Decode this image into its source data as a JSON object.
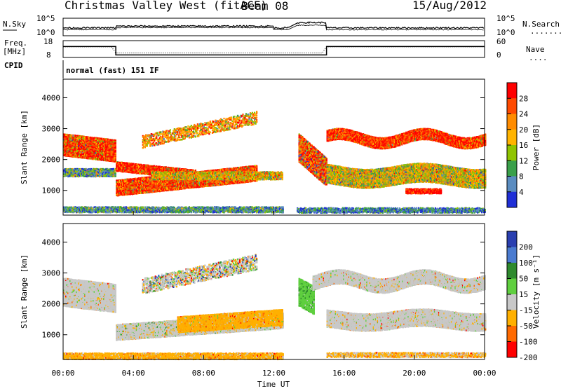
{
  "header": {
    "station": "Christmas Valley West (fitACF)",
    "beam": "Beam 08",
    "date": "15/Aug/2012"
  },
  "strip_labels": {
    "nsky": "N.Sky",
    "freq_line1": "Freq.",
    "freq_line2": "[MHz]",
    "cpid": "CPID",
    "nsearch": "N.Search",
    "nave": "Nave",
    "nsearch_dots": "........",
    "nave_dots": "...."
  },
  "strip_ticks": {
    "nsky_top": "10^5",
    "nsky_bottom": "10^0",
    "freq_top": "18",
    "freq_bottom": "8",
    "nave_top": "60",
    "nave_bottom": "0",
    "nsearch_top": "10^5",
    "nsearch_bottom": "10^0"
  },
  "cpid_text": "normal (fast) 151 IF",
  "panels": {
    "power": {
      "ylabel": "Slant Range [km]",
      "ticks": [
        "4000",
        "3000",
        "2000",
        "1000"
      ],
      "cbar_label": "Power [dB]",
      "cbar_ticks": [
        "28",
        "24",
        "20",
        "16",
        "12",
        "8",
        "4"
      ],
      "cbar_colors": [
        "#ff0000",
        "#ff4a00",
        "#ff8c00",
        "#ffb400",
        "#8fc400",
        "#3aa04a",
        "#5a8cc0",
        "#1f2fd6"
      ]
    },
    "velocity": {
      "ylabel": "Slant Range [km]",
      "ticks": [
        "4000",
        "3000",
        "2000",
        "1000"
      ],
      "cbar_label": "Velocity [m s⁻¹]",
      "cbar_ticks": [
        "200",
        "100",
        "50",
        "15",
        "-15",
        "-50",
        "-100",
        "-200"
      ],
      "cbar_colors": [
        "#2a3fb0",
        "#4a7bd0",
        "#2e8a2e",
        "#5fcf3f",
        "#c8c8c8",
        "#ffb000",
        "#ff6a00",
        "#ff0000"
      ]
    }
  },
  "x_axis": {
    "ticks": [
      "00:00",
      "04:00",
      "08:00",
      "12:00",
      "16:00",
      "20:00",
      "00:00"
    ],
    "label": "Time UT"
  },
  "chart_data": [
    {
      "type": "heatmap",
      "title": "Power",
      "ylabel": "Slant Range [km]",
      "xlabel": "Time UT",
      "x_range_hours": [
        0,
        24
      ],
      "ylim": [
        200,
        4600
      ],
      "colorbar": {
        "label": "Power [dB]",
        "ticks": [
          28,
          24,
          20,
          16,
          12,
          8,
          4
        ],
        "range": [
          0,
          30
        ]
      },
      "features": [
        {
          "region": "early band",
          "t": [
            0,
            3
          ],
          "range_km": [
            1600,
            2900
          ],
          "power_db": 26
        },
        {
          "region": "ground scatter",
          "t": [
            3,
            11
          ],
          "range_km": [
            500,
            1800
          ],
          "power_db": 28
        },
        {
          "region": "late band",
          "t": [
            15,
            24
          ],
          "range_km": [
            2300,
            3000
          ],
          "power_db": 22
        },
        {
          "region": "late low band",
          "t": [
            15,
            24
          ],
          "range_km": [
            900,
            1900
          ],
          "power_db": 14
        }
      ]
    },
    {
      "type": "heatmap",
      "title": "Velocity",
      "ylabel": "Slant Range [km]",
      "xlabel": "Time UT",
      "x_range_hours": [
        0,
        24
      ],
      "ylim": [
        200,
        4600
      ],
      "colorbar": {
        "label": "Velocity [m s-1]",
        "ticks": [
          200,
          100,
          50,
          15,
          -15,
          -50,
          -100,
          -200
        ]
      },
      "features": [
        {
          "region": "early band",
          "t": [
            0,
            3
          ],
          "range_km": [
            1600,
            2900
          ],
          "velocity": 0
        },
        {
          "region": "negative band",
          "t": [
            6.5,
            12.5
          ],
          "range_km": [
            1000,
            1800
          ],
          "velocity": -50
        },
        {
          "region": "near range",
          "t": [
            0,
            12.5
          ],
          "range_km": [
            200,
            500
          ],
          "velocity": -50
        },
        {
          "region": "late band",
          "t": [
            15,
            24
          ],
          "range_km": [
            1200,
            3100
          ],
          "velocity": 0
        }
      ]
    }
  ]
}
